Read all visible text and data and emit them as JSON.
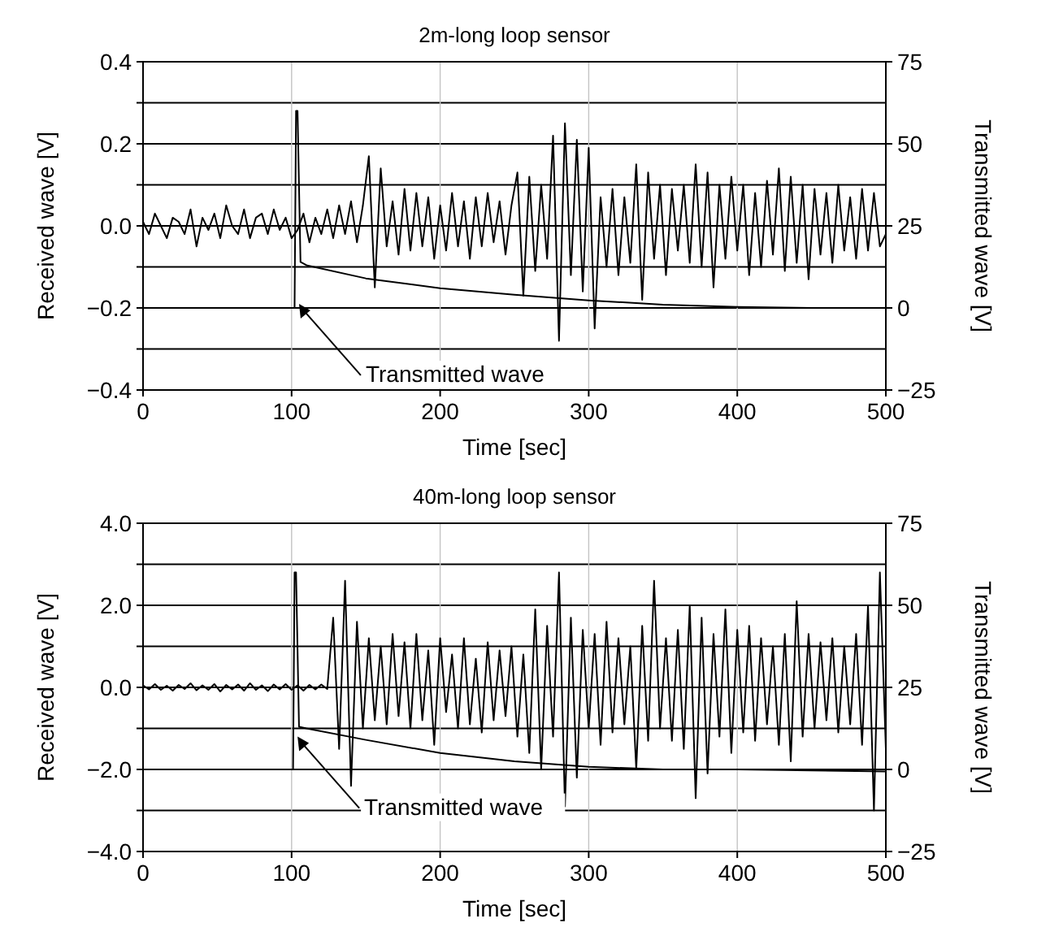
{
  "chart_data": [
    {
      "type": "line",
      "title": "2m-long loop sensor",
      "xlabel": "Time [sec]",
      "ylabel": "Received wave [V]",
      "y2label": "Transmitted wave [V]",
      "grid": true,
      "marker": "none",
      "line_style": "solid",
      "xlim": [
        0,
        500
      ],
      "xticks": [
        0,
        100,
        200,
        300,
        400,
        500
      ],
      "ylim": [
        -0.4,
        0.4
      ],
      "yticks": [
        {
          "value": -0.4,
          "label": "−0.4"
        },
        {
          "value": -0.3,
          "label": null
        },
        {
          "value": -0.2,
          "label": "−0.2"
        },
        {
          "value": -0.1,
          "label": null
        },
        {
          "value": 0,
          "label": "0.0"
        },
        {
          "value": 0.1,
          "label": null
        },
        {
          "value": 0.2,
          "label": "0.2"
        },
        {
          "value": 0.3,
          "label": null
        },
        {
          "value": 0.4,
          "label": "0.4"
        }
      ],
      "y2lim": [
        -25,
        75
      ],
      "y2ticks": [
        {
          "value": -25,
          "label": "−25"
        },
        0,
        25,
        50,
        75
      ],
      "x": [
        0,
        4,
        8,
        12,
        16,
        20,
        24,
        28,
        32,
        36,
        40,
        44,
        48,
        52,
        56,
        60,
        64,
        68,
        72,
        76,
        80,
        84,
        88,
        92,
        96,
        100,
        104,
        108,
        112,
        116,
        120,
        124,
        128,
        132,
        136,
        140,
        144,
        148,
        152,
        156,
        160,
        164,
        168,
        172,
        176,
        180,
        184,
        188,
        192,
        196,
        200,
        204,
        208,
        212,
        216,
        220,
        224,
        228,
        232,
        236,
        240,
        244,
        248,
        252,
        256,
        260,
        264,
        268,
        272,
        276,
        280,
        284,
        288,
        292,
        296,
        300,
        304,
        308,
        312,
        316,
        320,
        324,
        328,
        332,
        336,
        340,
        344,
        348,
        352,
        356,
        360,
        364,
        368,
        372,
        376,
        380,
        384,
        388,
        392,
        396,
        400,
        404,
        408,
        412,
        416,
        420,
        424,
        428,
        432,
        436,
        440,
        444,
        448,
        452,
        456,
        460,
        464,
        468,
        472,
        476,
        480,
        484,
        488,
        492,
        496,
        500
      ],
      "series": [
        {
          "color": "#000000",
          "values": [
            0.01,
            -0.02,
            0.03,
            0.0,
            -0.03,
            0.02,
            0.01,
            -0.02,
            0.04,
            -0.05,
            0.02,
            -0.01,
            0.03,
            -0.03,
            0.05,
            0.0,
            -0.02,
            0.04,
            -0.03,
            0.02,
            0.03,
            -0.02,
            0.04,
            -0.01,
            0.02,
            -0.03,
            -0.01,
            0.03,
            -0.04,
            0.02,
            -0.02,
            0.04,
            -0.03,
            0.05,
            -0.02,
            0.06,
            -0.04,
            0.05,
            0.17,
            -0.15,
            0.14,
            -0.05,
            0.06,
            -0.07,
            0.09,
            -0.06,
            0.08,
            -0.05,
            0.07,
            -0.08,
            0.05,
            -0.06,
            0.08,
            -0.05,
            0.06,
            -0.08,
            0.07,
            -0.05,
            0.08,
            -0.04,
            0.06,
            -0.07,
            0.05,
            0.13,
            -0.17,
            0.12,
            -0.11,
            0.1,
            -0.08,
            0.22,
            -0.28,
            0.25,
            -0.12,
            0.21,
            -0.16,
            0.19,
            -0.25,
            0.07,
            -0.1,
            0.09,
            -0.12,
            0.07,
            -0.09,
            0.15,
            -0.18,
            0.13,
            -0.08,
            0.1,
            -0.12,
            0.09,
            -0.06,
            0.1,
            -0.09,
            0.15,
            -0.1,
            0.13,
            -0.15,
            0.1,
            -0.08,
            0.12,
            -0.06,
            0.1,
            -0.12,
            0.08,
            -0.1,
            0.11,
            -0.07,
            0.14,
            -0.11,
            0.12,
            -0.09,
            0.1,
            -0.13,
            0.09,
            -0.07,
            0.08,
            -0.09,
            0.1,
            -0.06,
            0.07,
            -0.08,
            0.09,
            -0.06,
            0.08,
            -0.05,
            -0.02
          ]
        },
        {
          "color": "#000000",
          "axis": "y2",
          "x": [
            0,
            100,
            102,
            103,
            104,
            106,
            110,
            150,
            200,
            250,
            300,
            350,
            400,
            450,
            500
          ],
          "values": [
            0,
            0,
            0,
            60,
            60,
            14,
            13,
            9,
            6,
            4,
            2.3,
            1,
            0.3,
            0,
            0
          ]
        }
      ],
      "annotations": [
        {
          "text": "Transmitted wave",
          "x": 105,
          "y": -0.19
        }
      ]
    },
    {
      "type": "line",
      "title": "40m-long loop sensor",
      "xlabel": "Time [sec]",
      "ylabel": "Received wave [V]",
      "y2label": "Transmitted wave [V]",
      "grid": true,
      "marker": "none",
      "line_style": "solid",
      "xlim": [
        0,
        500
      ],
      "xticks": [
        0,
        100,
        200,
        300,
        400,
        500
      ],
      "ylim": [
        -4,
        4
      ],
      "yticks": [
        {
          "value": -4,
          "label": "−4.0"
        },
        {
          "value": -3,
          "label": null
        },
        {
          "value": -2,
          "label": "−2.0"
        },
        {
          "value": -1,
          "label": null
        },
        {
          "value": 0,
          "label": "0.0"
        },
        {
          "value": 1,
          "label": null
        },
        {
          "value": 2,
          "label": "2.0"
        },
        {
          "value": 3,
          "label": null
        },
        {
          "value": 4,
          "label": "4.0"
        }
      ],
      "y2lim": [
        -25,
        75
      ],
      "y2ticks": [
        {
          "value": -25,
          "label": "−25"
        },
        0,
        25,
        50,
        75
      ],
      "x": [
        0,
        4,
        8,
        12,
        16,
        20,
        24,
        28,
        32,
        36,
        40,
        44,
        48,
        52,
        56,
        60,
        64,
        68,
        72,
        76,
        80,
        84,
        88,
        92,
        96,
        100,
        104,
        108,
        112,
        116,
        120,
        124,
        128,
        132,
        136,
        140,
        144,
        148,
        152,
        156,
        160,
        164,
        168,
        172,
        176,
        180,
        184,
        188,
        192,
        196,
        200,
        204,
        208,
        212,
        216,
        220,
        224,
        228,
        232,
        236,
        240,
        244,
        248,
        252,
        256,
        260,
        264,
        268,
        272,
        276,
        280,
        284,
        288,
        292,
        296,
        300,
        304,
        308,
        312,
        316,
        320,
        324,
        328,
        332,
        336,
        340,
        344,
        348,
        352,
        356,
        360,
        364,
        368,
        372,
        376,
        380,
        384,
        388,
        392,
        396,
        400,
        404,
        408,
        412,
        416,
        420,
        424,
        428,
        432,
        436,
        440,
        444,
        448,
        452,
        456,
        460,
        464,
        468,
        472,
        476,
        480,
        484,
        488,
        492,
        496,
        500
      ],
      "series": [
        {
          "color": "#000000",
          "values": [
            0.05,
            -0.05,
            0.08,
            -0.06,
            0.04,
            -0.08,
            0.06,
            -0.04,
            0.1,
            -0.07,
            0.05,
            -0.06,
            0.08,
            -0.1,
            0.06,
            -0.05,
            0.07,
            -0.08,
            0.1,
            -0.06,
            0.05,
            -0.09,
            0.07,
            -0.05,
            0.08,
            -0.06,
            0.05,
            -0.08,
            0.06,
            -0.05,
            0.07,
            -0.04,
            1.7,
            -1.5,
            2.6,
            -2.4,
            1.6,
            -1.0,
            1.2,
            -0.8,
            1.0,
            -0.9,
            1.3,
            -0.7,
            1.1,
            -1.0,
            1.3,
            -0.8,
            0.9,
            -1.4,
            1.2,
            -0.6,
            0.8,
            -1.0,
            1.2,
            -0.9,
            0.7,
            -1.1,
            1.1,
            -0.8,
            0.9,
            -0.7,
            1.0,
            -1.2,
            0.8,
            -1.6,
            1.9,
            -2.0,
            1.5,
            -1.2,
            2.8,
            -2.9,
            1.7,
            -2.2,
            1.4,
            -1.0,
            1.3,
            -1.4,
            1.6,
            -1.1,
            1.2,
            -0.9,
            1.0,
            -2.0,
            1.5,
            -1.3,
            2.6,
            -1.0,
            1.2,
            -1.3,
            1.4,
            -1.5,
            2.0,
            -2.7,
            1.7,
            -2.1,
            1.3,
            -1.2,
            1.9,
            -1.6,
            1.4,
            -1.1,
            1.5,
            -1.3,
            1.2,
            -0.9,
            1.0,
            -1.4,
            1.3,
            -1.8,
            2.1,
            -1.2,
            1.3,
            -1.0,
            1.1,
            -0.8,
            1.2,
            -1.1,
            1.0,
            -0.9,
            1.3,
            -1.4,
            2.0,
            -3.0,
            2.8,
            -1.5
          ]
        },
        {
          "color": "#000000",
          "axis": "y2",
          "x": [
            0,
            100,
            101,
            102,
            103,
            105,
            110,
            150,
            200,
            250,
            300,
            350,
            400,
            450,
            500
          ],
          "values": [
            0,
            0,
            0,
            60,
            60,
            13,
            12.5,
            9,
            5,
            2.5,
            0.8,
            0,
            0,
            -0.3,
            -0.6
          ]
        }
      ],
      "annotations": [
        {
          "text": "Transmitted wave",
          "x": 104,
          "y": -1.2
        }
      ]
    }
  ]
}
